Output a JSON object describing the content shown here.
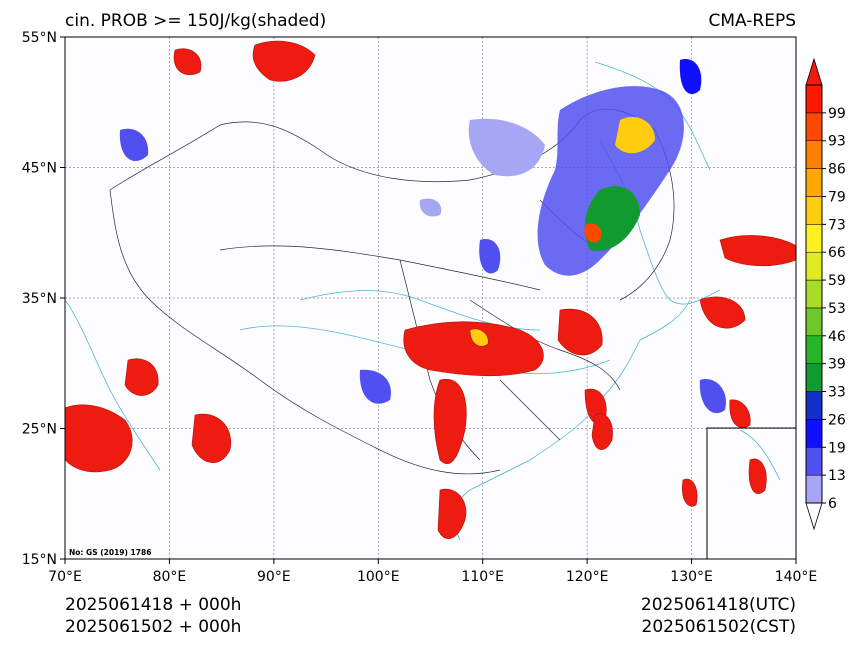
{
  "header": {
    "left_title": "cin. PROB >= 150J/kg(shaded)",
    "right_title": "CMA-REPS"
  },
  "map": {
    "lon_range": [
      70,
      140
    ],
    "lat_range": [
      15,
      55
    ],
    "lon_ticks": [
      {
        "value": 70,
        "label": "70°E"
      },
      {
        "value": 80,
        "label": "80°E"
      },
      {
        "value": 90,
        "label": "90°E"
      },
      {
        "value": 100,
        "label": "100°E"
      },
      {
        "value": 110,
        "label": "110°E"
      },
      {
        "value": 120,
        "label": "120°E"
      },
      {
        "value": 130,
        "label": "130°E"
      },
      {
        "value": 140,
        "label": "140°E"
      }
    ],
    "lat_ticks": [
      {
        "value": 15,
        "label": "15°N"
      },
      {
        "value": 25,
        "label": "25°N"
      },
      {
        "value": 35,
        "label": "35°N"
      },
      {
        "value": 45,
        "label": "45°N"
      },
      {
        "value": 55,
        "label": "55°N"
      }
    ],
    "map_number": "No: GS (2019) 1786"
  },
  "colorbar": {
    "levels": [
      "6",
      "13",
      "19",
      "26",
      "33",
      "39",
      "46",
      "53",
      "59",
      "66",
      "73",
      "79",
      "86",
      "93",
      "99"
    ],
    "colors": [
      "#a6a6f5",
      "#5050f0",
      "#1010ff",
      "#1030c8",
      "#109a30",
      "#28b428",
      "#70c828",
      "#a8dc28",
      "#e0ec20",
      "#fff020",
      "#ffcc10",
      "#ffa800",
      "#ff8000",
      "#ff4800",
      "#ff1800"
    ],
    "under_color": "#ffffff",
    "over_color": "#ee1c10"
  },
  "footer": {
    "init_line1": "2025061418  +  000h",
    "init_line2": "2025061502  +  000h",
    "valid_utc": "2025061418(UTC)",
    "valid_cst": "2025061502(CST)"
  }
}
